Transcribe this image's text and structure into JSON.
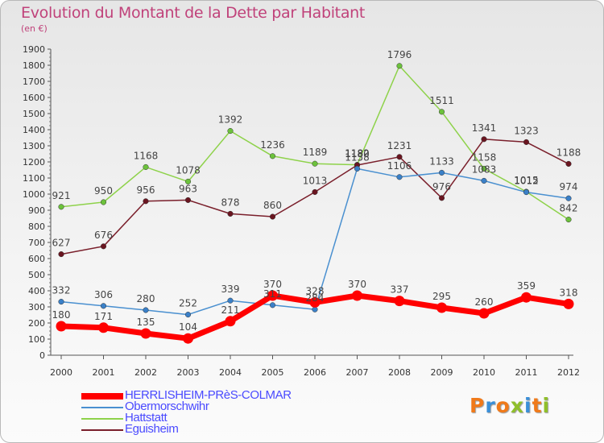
{
  "title": "Evolution du Montant de la Dette par Habitant",
  "unit": "(en €)",
  "logo": {
    "text": "Proxiti",
    "colors": [
      "#f07a1a",
      "#3a8fd8",
      "#f07a1a",
      "#8fbf2a",
      "#3a8fd8",
      "#f07a1a",
      "#8fbf2a"
    ]
  },
  "chart_data": {
    "type": "line",
    "title": "Evolution du Montant de la Dette par Habitant",
    "ylabel": "(en €)",
    "xlabel": "",
    "x": [
      "2000",
      "2001",
      "2002",
      "2003",
      "2004",
      "2005",
      "2006",
      "2007",
      "2008",
      "2009",
      "2010",
      "2011",
      "2012"
    ],
    "ylim": [
      0,
      1900
    ],
    "yticks": [
      "0",
      "100",
      "200",
      "300",
      "400",
      "500",
      "600",
      "700",
      "800",
      "900",
      "1000",
      "1100",
      "1200",
      "1300",
      "1400",
      "1500",
      "1600",
      "1700",
      "1800",
      "1900"
    ],
    "grid": false,
    "legend_position": "bottom-left",
    "series": [
      {
        "name": "Hattstatt",
        "color": "#8ed24a",
        "marker": "#6cc23c",
        "line_width": 1.5,
        "values": [
          921,
          950,
          1168,
          1078,
          1392,
          1236,
          1189,
          1182,
          1796,
          1511,
          1158,
          1015,
          842
        ],
        "labels": [
          "921",
          "950",
          "1168",
          "1078",
          "1392",
          "1236",
          "1189",
          "1182",
          "1796",
          "1511",
          "1158",
          "1015",
          "842"
        ]
      },
      {
        "name": "Eguisheim",
        "color": "#7a1f2b",
        "marker": "#6a1520",
        "line_width": 1.5,
        "values": [
          627,
          676,
          956,
          963,
          878,
          860,
          1013,
          1180,
          1231,
          976,
          1341,
          1323,
          1188
        ],
        "labels": [
          "627",
          "676",
          "956",
          "963",
          "878",
          "860",
          "1013",
          "1180",
          "1231",
          "976",
          "1341",
          "1323",
          "1188"
        ]
      },
      {
        "name": "Obermorschwihr",
        "color": "#4a90d0",
        "marker": "#3a80c8",
        "line_width": 1.5,
        "values": [
          332,
          306,
          280,
          252,
          339,
          311,
          284,
          1158,
          1106,
          1133,
          1083,
          1012,
          974
        ],
        "labels": [
          "332",
          "306",
          "280",
          "252",
          "339",
          "311",
          "284",
          "1158",
          "1106",
          "1133",
          "1083",
          "1012",
          "974"
        ]
      },
      {
        "name": "HERRLISHEIM-PRèS-COLMAR",
        "color": "#ff0000",
        "marker": "#ff0000",
        "line_width": 7,
        "values": [
          180,
          171,
          135,
          104,
          211,
          370,
          328,
          370,
          337,
          295,
          260,
          359,
          318
        ],
        "labels": [
          "180",
          "171",
          "135",
          "104",
          "211",
          "370",
          "328",
          "370",
          "337",
          "295",
          "260",
          "359",
          "318"
        ]
      }
    ],
    "legend": [
      {
        "name": "HERRLISHEIM-PRèS-COLMAR",
        "color": "#ff0000",
        "text_color": "#4a4aff",
        "thickness": 8
      },
      {
        "name": "Obermorschwihr",
        "color": "#4a90d0",
        "text_color": "#4a4aff",
        "thickness": 2
      },
      {
        "name": "Hattstatt",
        "color": "#8ed24a",
        "text_color": "#4a4aff",
        "thickness": 2
      },
      {
        "name": "Eguisheim",
        "color": "#7a1f2b",
        "text_color": "#4a4aff",
        "thickness": 2
      }
    ]
  }
}
